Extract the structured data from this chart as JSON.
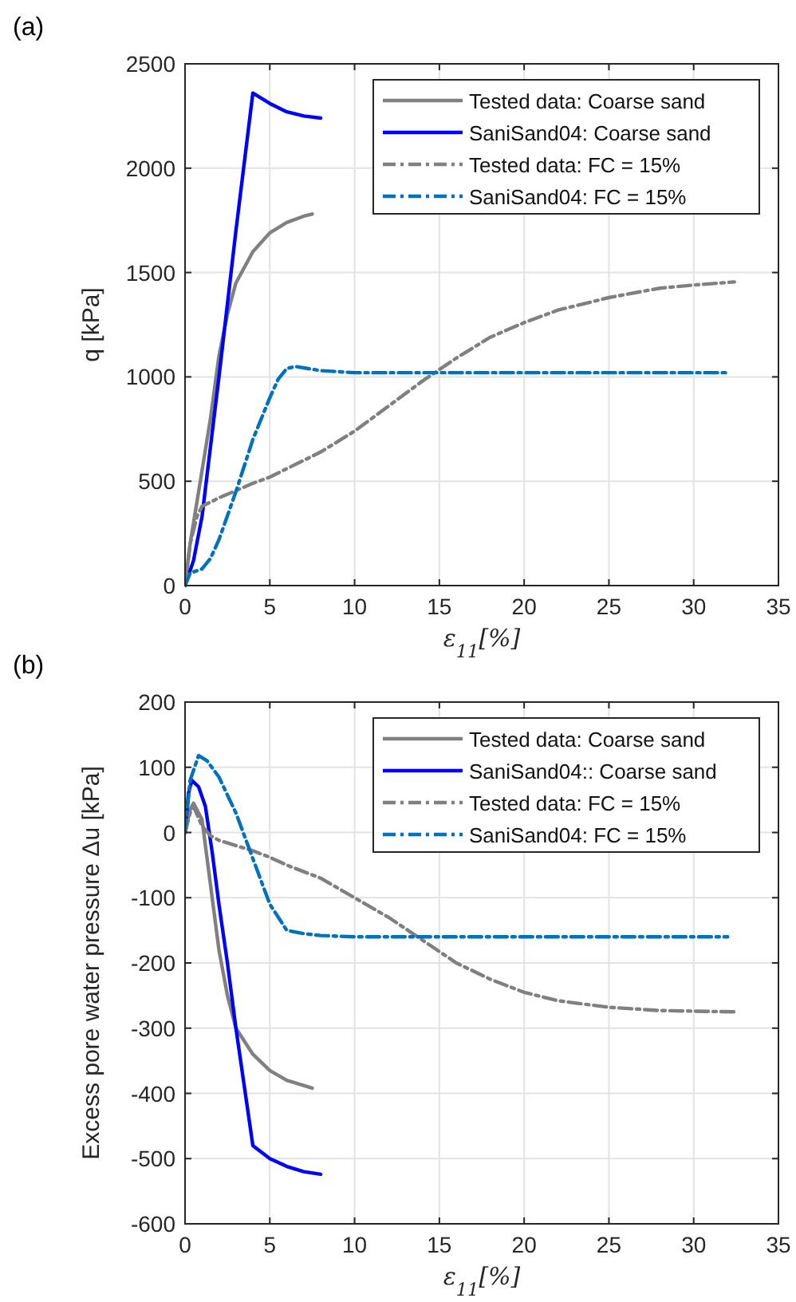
{
  "chart_data": [
    {
      "type": "line",
      "title": "(a)",
      "xlabel": "ε$_{11}$[%]",
      "ylabel": "q [kPa]",
      "xlim": [
        0,
        35
      ],
      "xticks": [
        0,
        5,
        10,
        15,
        20,
        25,
        30,
        35
      ],
      "ylim": [
        0,
        2500
      ],
      "yticks": [
        0,
        500,
        1000,
        1500,
        2000,
        2500
      ],
      "grid": true,
      "legend": "top right",
      "marker": "none",
      "series": [
        {
          "name": "Tested data: Coarse sand",
          "color": "#808080",
          "line_style": "solid",
          "x": [
            0,
            0.3,
            0.8,
            1.5,
            2,
            2.5,
            3,
            4,
            5,
            6,
            7,
            7.5
          ],
          "values": [
            0,
            200,
            450,
            800,
            1100,
            1300,
            1450,
            1600,
            1690,
            1740,
            1770,
            1780
          ]
        },
        {
          "name": "SaniSand04: Coarse sand",
          "color": "#0000ff",
          "line_style": "solid",
          "x": [
            0,
            0.5,
            1,
            2,
            3,
            4,
            5,
            6,
            7,
            8
          ],
          "values": [
            0,
            120,
            330,
            1000,
            1700,
            2360,
            2310,
            2270,
            2250,
            2240
          ]
        },
        {
          "name": "Tested data: FC = 15%",
          "color": "#808080",
          "line_style": "dashdot",
          "x": [
            0,
            0.3,
            0.7,
            1,
            2,
            3,
            4,
            5,
            6,
            8,
            10,
            12,
            14,
            16,
            18,
            20,
            22,
            25,
            28,
            30,
            32.4
          ],
          "values": [
            0,
            200,
            330,
            380,
            420,
            455,
            490,
            520,
            560,
            640,
            740,
            860,
            980,
            1090,
            1190,
            1260,
            1320,
            1380,
            1425,
            1440,
            1455
          ]
        },
        {
          "name": "SaniSand04: FC = 15%",
          "color": "#0072bd",
          "line_style": "dashdot",
          "x": [
            0,
            0.3,
            1,
            1.5,
            2,
            3,
            4,
            5,
            5.5,
            6,
            6.5,
            8,
            10,
            15,
            32
          ],
          "values": [
            0,
            60,
            80,
            130,
            220,
            450,
            700,
            900,
            990,
            1040,
            1050,
            1030,
            1020,
            1020,
            1020
          ]
        }
      ]
    },
    {
      "type": "line",
      "title": "(b)",
      "xlabel": "ε$_{11}$[%]",
      "ylabel": "Excess pore water pressure Δu [kPa]",
      "xlim": [
        0,
        35
      ],
      "xticks": [
        0,
        5,
        10,
        15,
        20,
        25,
        30,
        35
      ],
      "ylim": [
        -600,
        200
      ],
      "yticks": [
        -600,
        -500,
        -400,
        -300,
        -200,
        -100,
        0,
        100,
        200
      ],
      "grid": true,
      "legend": "top right",
      "marker": "none",
      "series": [
        {
          "name": "Tested data: Coarse sand",
          "color": "#808080",
          "line_style": "solid",
          "x": [
            0,
            0.3,
            0.5,
            1,
            1.5,
            2,
            2.5,
            3,
            4,
            5,
            6,
            7.5
          ],
          "values": [
            0,
            35,
            45,
            20,
            -80,
            -180,
            -250,
            -300,
            -340,
            -365,
            -380,
            -392
          ]
        },
        {
          "name": "SaniSand04:: Coarse sand",
          "color": "#0000ff",
          "line_style": "solid",
          "x": [
            0,
            0.2,
            0.4,
            0.8,
            1.2,
            1.6,
            2,
            2.5,
            3,
            4,
            5,
            6,
            7,
            8
          ],
          "values": [
            0,
            60,
            80,
            70,
            40,
            -30,
            -110,
            -200,
            -300,
            -480,
            -500,
            -512,
            -520,
            -524
          ]
        },
        {
          "name": "Tested data: FC = 15%",
          "color": "#808080",
          "line_style": "dashdot",
          "x": [
            0,
            0.3,
            0.5,
            1,
            1.5,
            2,
            3,
            4,
            5,
            6,
            8,
            10,
            12,
            14,
            16,
            18,
            20,
            22,
            25,
            28,
            32.4
          ],
          "values": [
            0,
            30,
            40,
            10,
            -5,
            -12,
            -20,
            -28,
            -38,
            -50,
            -70,
            -100,
            -130,
            -165,
            -200,
            -225,
            -245,
            -258,
            -268,
            -273,
            -275
          ]
        },
        {
          "name": "SaniSand04: FC = 15%",
          "color": "#0072bd",
          "line_style": "dashdot",
          "x": [
            0,
            0.3,
            0.8,
            1.3,
            2,
            3,
            4,
            5,
            6,
            7,
            8,
            10,
            32
          ],
          "values": [
            0,
            80,
            118,
            110,
            85,
            30,
            -40,
            -110,
            -150,
            -155,
            -158,
            -160,
            -160
          ]
        }
      ]
    }
  ]
}
